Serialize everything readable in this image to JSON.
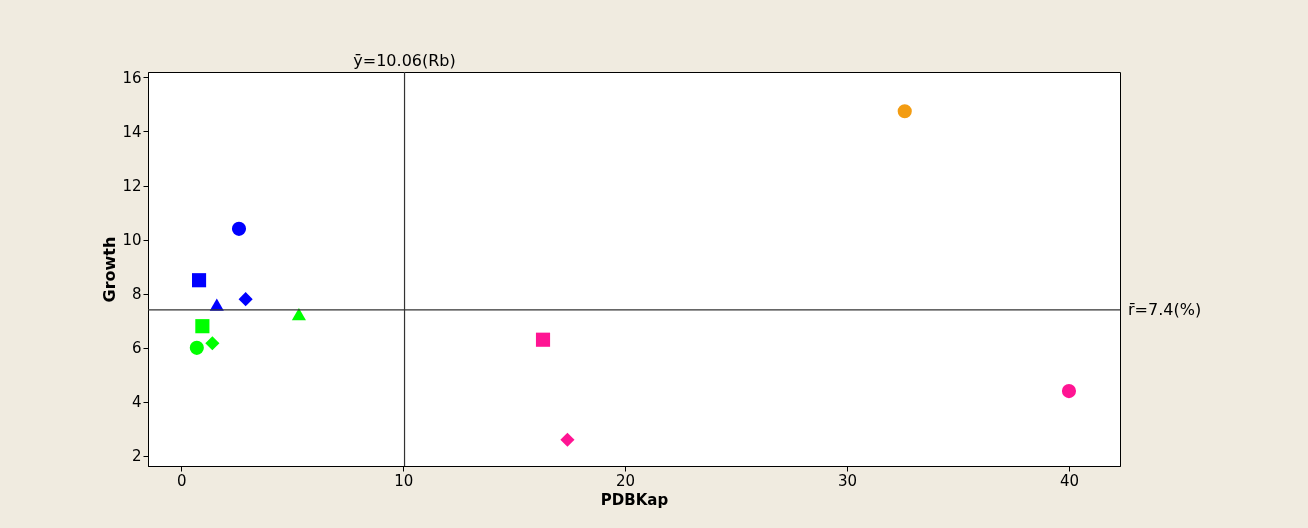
{
  "chart_data": {
    "type": "scatter",
    "xlabel": "PDBKap",
    "ylabel": "Growth",
    "xlim": [
      -1.5,
      42.3
    ],
    "ylim": [
      1.63,
      16.2
    ],
    "xticks": [
      0,
      10,
      20,
      30,
      40
    ],
    "yticks": [
      2,
      4,
      6,
      8,
      10,
      12,
      14,
      16
    ],
    "grid": false,
    "series": [
      {
        "marker": "circle",
        "x": [
          32.6,
          2.6,
          0.7,
          40.0
        ],
        "values": [
          14.75,
          10.4,
          6.0,
          4.4
        ],
        "colors": [
          "#f39c12",
          "#0000ff",
          "#00ff00",
          "#ff1493"
        ]
      },
      {
        "marker": "square",
        "x": [
          0.8,
          0.95,
          16.3
        ],
        "values": [
          8.5,
          6.8,
          6.3
        ],
        "colors": [
          "#0000ff",
          "#00ff00",
          "#ff1493"
        ]
      },
      {
        "marker": "triangle",
        "x": [
          1.6,
          5.3
        ],
        "values": [
          7.6,
          7.25
        ],
        "colors": [
          "#0000ff",
          "#00ff00"
        ]
      },
      {
        "marker": "diamond",
        "x": [
          2.9,
          1.4,
          17.4
        ],
        "values": [
          7.8,
          6.17,
          2.6
        ],
        "colors": [
          "#0000ff",
          "#00ff00",
          "#ff1493"
        ]
      }
    ],
    "ref_lines": [
      {
        "axis": "x",
        "value": 10.06,
        "label": "ȳ=10.06(Rb)",
        "color": "#333333"
      },
      {
        "axis": "y",
        "value": 7.4,
        "label": "r̄=7.4(%)",
        "color": "#333333"
      }
    ]
  }
}
